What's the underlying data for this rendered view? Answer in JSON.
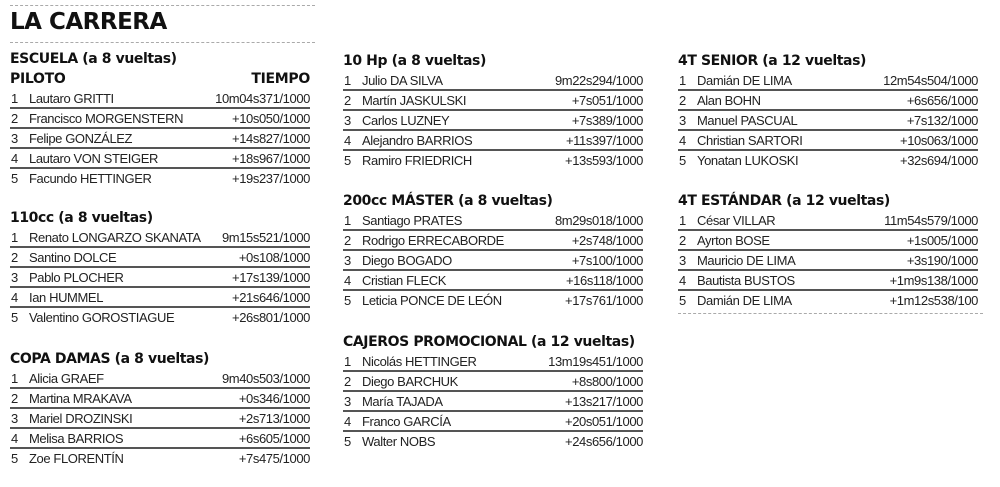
{
  "title": "LA CARRERA",
  "column_headers": {
    "pilot": "PILOTO",
    "time": "TIEMPO"
  },
  "sections": [
    {
      "heading": "ESCUELA (a 8 vueltas)",
      "show_column_headers": true,
      "results": [
        {
          "pos": "1",
          "name": "Lautaro GRITTI",
          "time": "10m04s371/1000"
        },
        {
          "pos": "2",
          "name": "Francisco MORGENSTERN",
          "time": "+10s050/1000"
        },
        {
          "pos": "3",
          "name": "Felipe GONZÁLEZ",
          "time": "+14s827/1000"
        },
        {
          "pos": "4",
          "name": "Lautaro VON STEIGER",
          "time": "+18s967/1000"
        },
        {
          "pos": "5",
          "name": "Facundo HETTINGER",
          "time": "+19s237/1000"
        }
      ]
    },
    {
      "heading": "110cc (a 8 vueltas)",
      "results": [
        {
          "pos": "1",
          "name": "Renato LONGARZO SKANATA",
          "time": "9m15s521/1000"
        },
        {
          "pos": "2",
          "name": "Santino DOLCE",
          "time": "+0s108/1000"
        },
        {
          "pos": "3",
          "name": "Pablo PLOCHER",
          "time": "+17s139/1000"
        },
        {
          "pos": "4",
          "name": "Ian HUMMEL",
          "time": "+21s646/1000"
        },
        {
          "pos": "5",
          "name": "Valentino GOROSTIAGUE",
          "time": "+26s801/1000"
        }
      ]
    },
    {
      "heading": "COPA DAMAS (a 8 vueltas)",
      "results": [
        {
          "pos": "1",
          "name": "Alicia GRAEF",
          "time": "9m40s503/1000"
        },
        {
          "pos": "2",
          "name": "Martina MRAKAVA",
          "time": "+0s346/1000"
        },
        {
          "pos": "3",
          "name": "Mariel DROZINSKI",
          "time": "+2s713/1000"
        },
        {
          "pos": "4",
          "name": "Melisa BARRIOS",
          "time": "+6s605/1000"
        },
        {
          "pos": "5",
          "name": "Zoe FLORENTÍN",
          "time": "+7s475/1000"
        }
      ]
    },
    {
      "heading": "10 Hp (a 8 vueltas)",
      "results": [
        {
          "pos": "1",
          "name": "Julio DA SILVA",
          "time": "9m22s294/1000"
        },
        {
          "pos": "2",
          "name": "Martín JASKULSKI",
          "time": "+7s051/1000"
        },
        {
          "pos": "3",
          "name": "Carlos LUZNEY",
          "time": "+7s389/1000"
        },
        {
          "pos": "4",
          "name": "Alejandro BARRIOS",
          "time": "+11s397/1000"
        },
        {
          "pos": "5",
          "name": "Ramiro FRIEDRICH",
          "time": "+13s593/1000"
        }
      ]
    },
    {
      "heading": "200cc MÁSTER (a 8 vueltas)",
      "results": [
        {
          "pos": "1",
          "name": "Santiago PRATES",
          "time": "8m29s018/1000"
        },
        {
          "pos": "2",
          "name": "Rodrigo ERRECABORDE",
          "time": "+2s748/1000"
        },
        {
          "pos": "3",
          "name": "Diego BOGADO",
          "time": "+7s100/1000"
        },
        {
          "pos": "4",
          "name": "Cristian FLECK",
          "time": "+16s118/1000"
        },
        {
          "pos": "5",
          "name": "Leticia PONCE DE LEÓN",
          "time": "+17s761/1000"
        }
      ]
    },
    {
      "heading": "CAJEROS PROMOCIONAL (a 12 vueltas)",
      "results": [
        {
          "pos": "1",
          "name": "Nicolás HETTINGER",
          "time": "13m19s451/1000"
        },
        {
          "pos": "2",
          "name": "Diego BARCHUK",
          "time": "+8s800/1000"
        },
        {
          "pos": "3",
          "name": "María TAJADA",
          "time": "+13s217/1000"
        },
        {
          "pos": "4",
          "name": "Franco GARCÍA",
          "time": "+20s051/1000"
        },
        {
          "pos": "5",
          "name": "Walter NOBS",
          "time": "+24s656/1000"
        }
      ]
    },
    {
      "heading": "4T SENIOR (a 12 vueltas)",
      "results": [
        {
          "pos": "1",
          "name": "Damián DE LIMA",
          "time": "12m54s504/1000"
        },
        {
          "pos": "2",
          "name": "Alan BOHN",
          "time": "+6s656/1000"
        },
        {
          "pos": "3",
          "name": "Manuel PASCUAL",
          "time": "+7s132/1000"
        },
        {
          "pos": "4",
          "name": "Christian SARTORI",
          "time": "+10s063/1000"
        },
        {
          "pos": "5",
          "name": "Yonatan LUKOSKI",
          "time": "+32s694/1000"
        }
      ]
    },
    {
      "heading": "4T ESTÁNDAR (a 12 vueltas)",
      "results": [
        {
          "pos": "1",
          "name": "César VILLAR",
          "time": "11m54s579/1000"
        },
        {
          "pos": "2",
          "name": "Ayrton BOSE",
          "time": "+1s005/1000"
        },
        {
          "pos": "3",
          "name": "Mauricio DE LIMA",
          "time": "+3s190/1000"
        },
        {
          "pos": "4",
          "name": "Bautista BUSTOS",
          "time": "+1m9s138/1000"
        },
        {
          "pos": "5",
          "name": "Damián DE LIMA",
          "time": "+1m12s538/100"
        }
      ]
    }
  ]
}
